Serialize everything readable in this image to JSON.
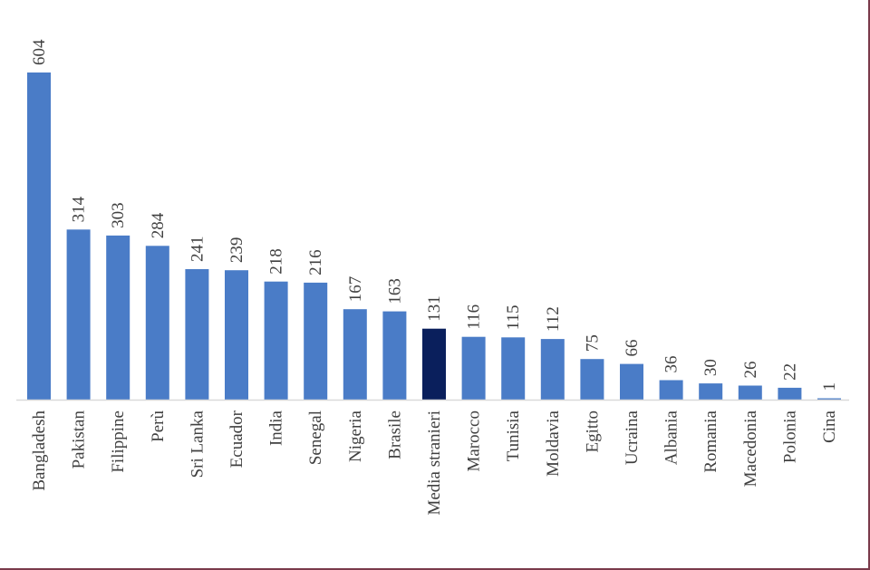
{
  "chart_data": {
    "type": "bar",
    "title": "",
    "xlabel": "",
    "ylabel": "",
    "categories": [
      "Bangladesh",
      "Pakistan",
      "Filippine",
      "Perù",
      "Sri Lanka",
      "Ecuador",
      "India",
      "Senegal",
      "Nigeria",
      "Brasile",
      "Media stranieri",
      "Marocco",
      "Tunisia",
      "Moldavia",
      "Egitto",
      "Ucraina",
      "Albania",
      "Romania",
      "Macedonia",
      "Polonia",
      "Cina"
    ],
    "values": [
      604,
      314,
      303,
      284,
      241,
      239,
      218,
      216,
      167,
      163,
      131,
      116,
      115,
      112,
      75,
      66,
      36,
      30,
      26,
      22,
      1
    ],
    "value_labels": [
      "604",
      "314",
      "303",
      "284",
      "241",
      "239",
      "218",
      "216",
      "167",
      "163",
      "131",
      "116",
      "115",
      "112",
      "75",
      "66",
      "36",
      "30",
      "26",
      "22",
      "1"
    ],
    "highlight_category": "Media stranieri",
    "ylim": [
      0,
      604
    ],
    "grid": false,
    "legend": "none",
    "colors": {
      "bar": "#4a7cc7",
      "highlight": "#0a1f5c",
      "axis": "#d9d9d9",
      "text": "#404040"
    }
  }
}
